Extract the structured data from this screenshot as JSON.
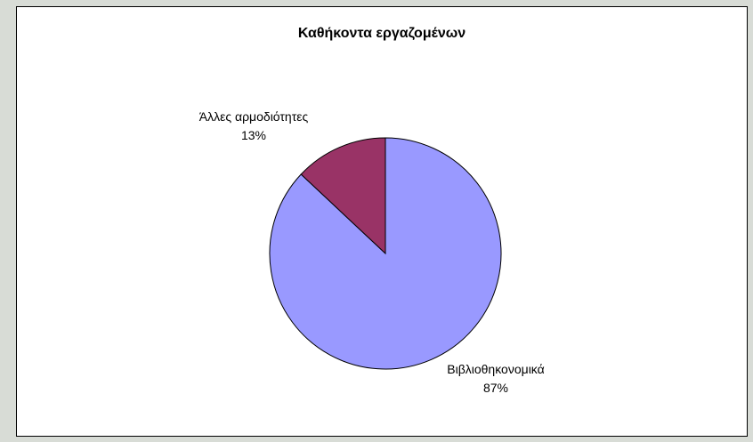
{
  "chart_data": {
    "type": "pie",
    "title": "Καθήκοντα εργαζομένων",
    "categories": [
      "Βιβλιοθηκονομικά",
      "Άλλες αρμοδιότητες"
    ],
    "values": [
      87,
      13
    ],
    "value_labels": [
      "87%",
      "13%"
    ],
    "colors": [
      "#9999ff",
      "#993366"
    ],
    "start_angle_deg": 0,
    "direction": "clockwise",
    "legend": "none",
    "grid": false
  }
}
